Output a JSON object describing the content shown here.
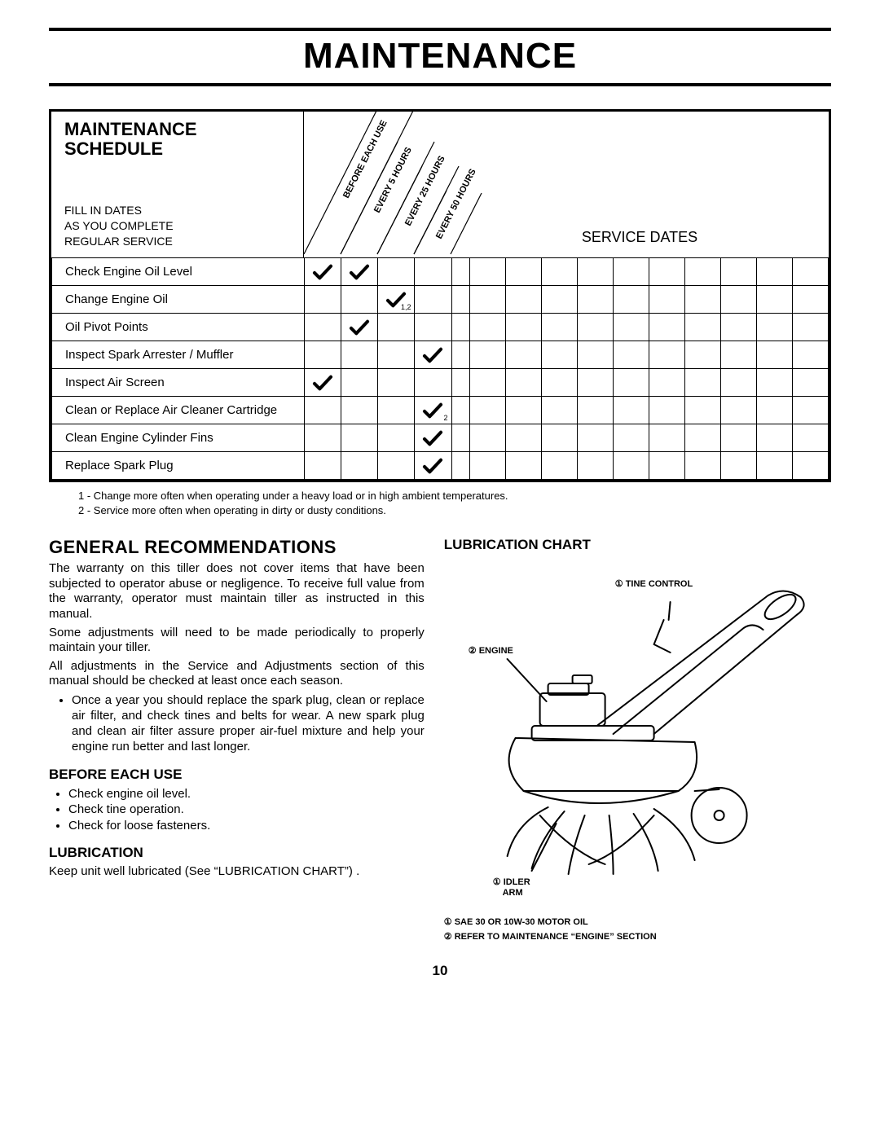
{
  "page_number": "10",
  "title": "MAINTENANCE",
  "schedule": {
    "heading": "MAINTENANCE SCHEDULE",
    "subtext": "FILL IN DATES\nAS YOU COMPLETE\nREGULAR SERVICE",
    "service_dates_label": "SERVICE DATES",
    "intervals": [
      "BEFORE EACH USE",
      "EVERY 5 HOURS",
      "EVERY 25 HOURS",
      "EVERY 50 HOURS"
    ],
    "rows": [
      {
        "task": "Check Engine Oil Level",
        "checks": {
          "0": {
            "on": true
          },
          "1": {
            "on": true
          }
        }
      },
      {
        "task": "Change Engine Oil",
        "checks": {
          "2": {
            "on": true,
            "sub": "1,2"
          }
        }
      },
      {
        "task": "Oil Pivot Points",
        "checks": {
          "1": {
            "on": true
          }
        }
      },
      {
        "task": "Inspect Spark Arrester / Muffler",
        "checks": {
          "3": {
            "on": true
          }
        }
      },
      {
        "task": "Inspect Air Screen",
        "checks": {
          "0": {
            "on": true
          }
        }
      },
      {
        "task": "Clean or Replace Air Cleaner Cartridge",
        "checks": {
          "3": {
            "on": true,
            "sub": "2"
          }
        }
      },
      {
        "task": "Clean Engine Cylinder Fins",
        "checks": {
          "3": {
            "on": true
          }
        }
      },
      {
        "task": "Replace Spark Plug",
        "checks": {
          "3": {
            "on": true
          }
        }
      }
    ],
    "footnotes": [
      "1 - Change more often when operating under a heavy load or in high ambient temperatures.",
      "2 - Service more often when operating in dirty or dusty conditions."
    ],
    "service_date_cols": 11
  },
  "general": {
    "heading": "GENERAL RECOMMENDATIONS",
    "p1": "The warranty on this tiller does not cover items that have been subjected to operator abuse or negligence. To receive full value from the warranty, operator must maintain tiller as instructed in this manual.",
    "p2": "Some adjustments will need to be made periodically to properly maintain your tiller.",
    "p3": "All adjustments in the Service and Adjustments section of this manual should be checked at least once each season.",
    "bullet": "Once a year you should replace the spark plug, clean or replace air filter, and check tines and belts for wear. A new spark plug and clean air filter assure proper air-fuel mixture and help your engine run better and last longer."
  },
  "before": {
    "heading": "BEFORE EACH USE",
    "items": [
      "Check engine oil level.",
      "Check tine operation.",
      "Check for loose fasteners."
    ]
  },
  "lubrication": {
    "heading": "LUBRICATION",
    "text": "Keep unit well lubricated (See “LUBRICATION CHART”) ."
  },
  "lub_chart": {
    "heading": "LUBRICATION CHART",
    "callouts": {
      "tine_control": "① TINE CONTROL",
      "engine": "② ENGINE",
      "idler_arm": "① IDLER\n    ARM"
    },
    "note1": "① SAE 30 OR 10W-30 MOTOR OIL",
    "note2": "② REFER TO MAINTENANCE “ENGINE” SECTION"
  }
}
